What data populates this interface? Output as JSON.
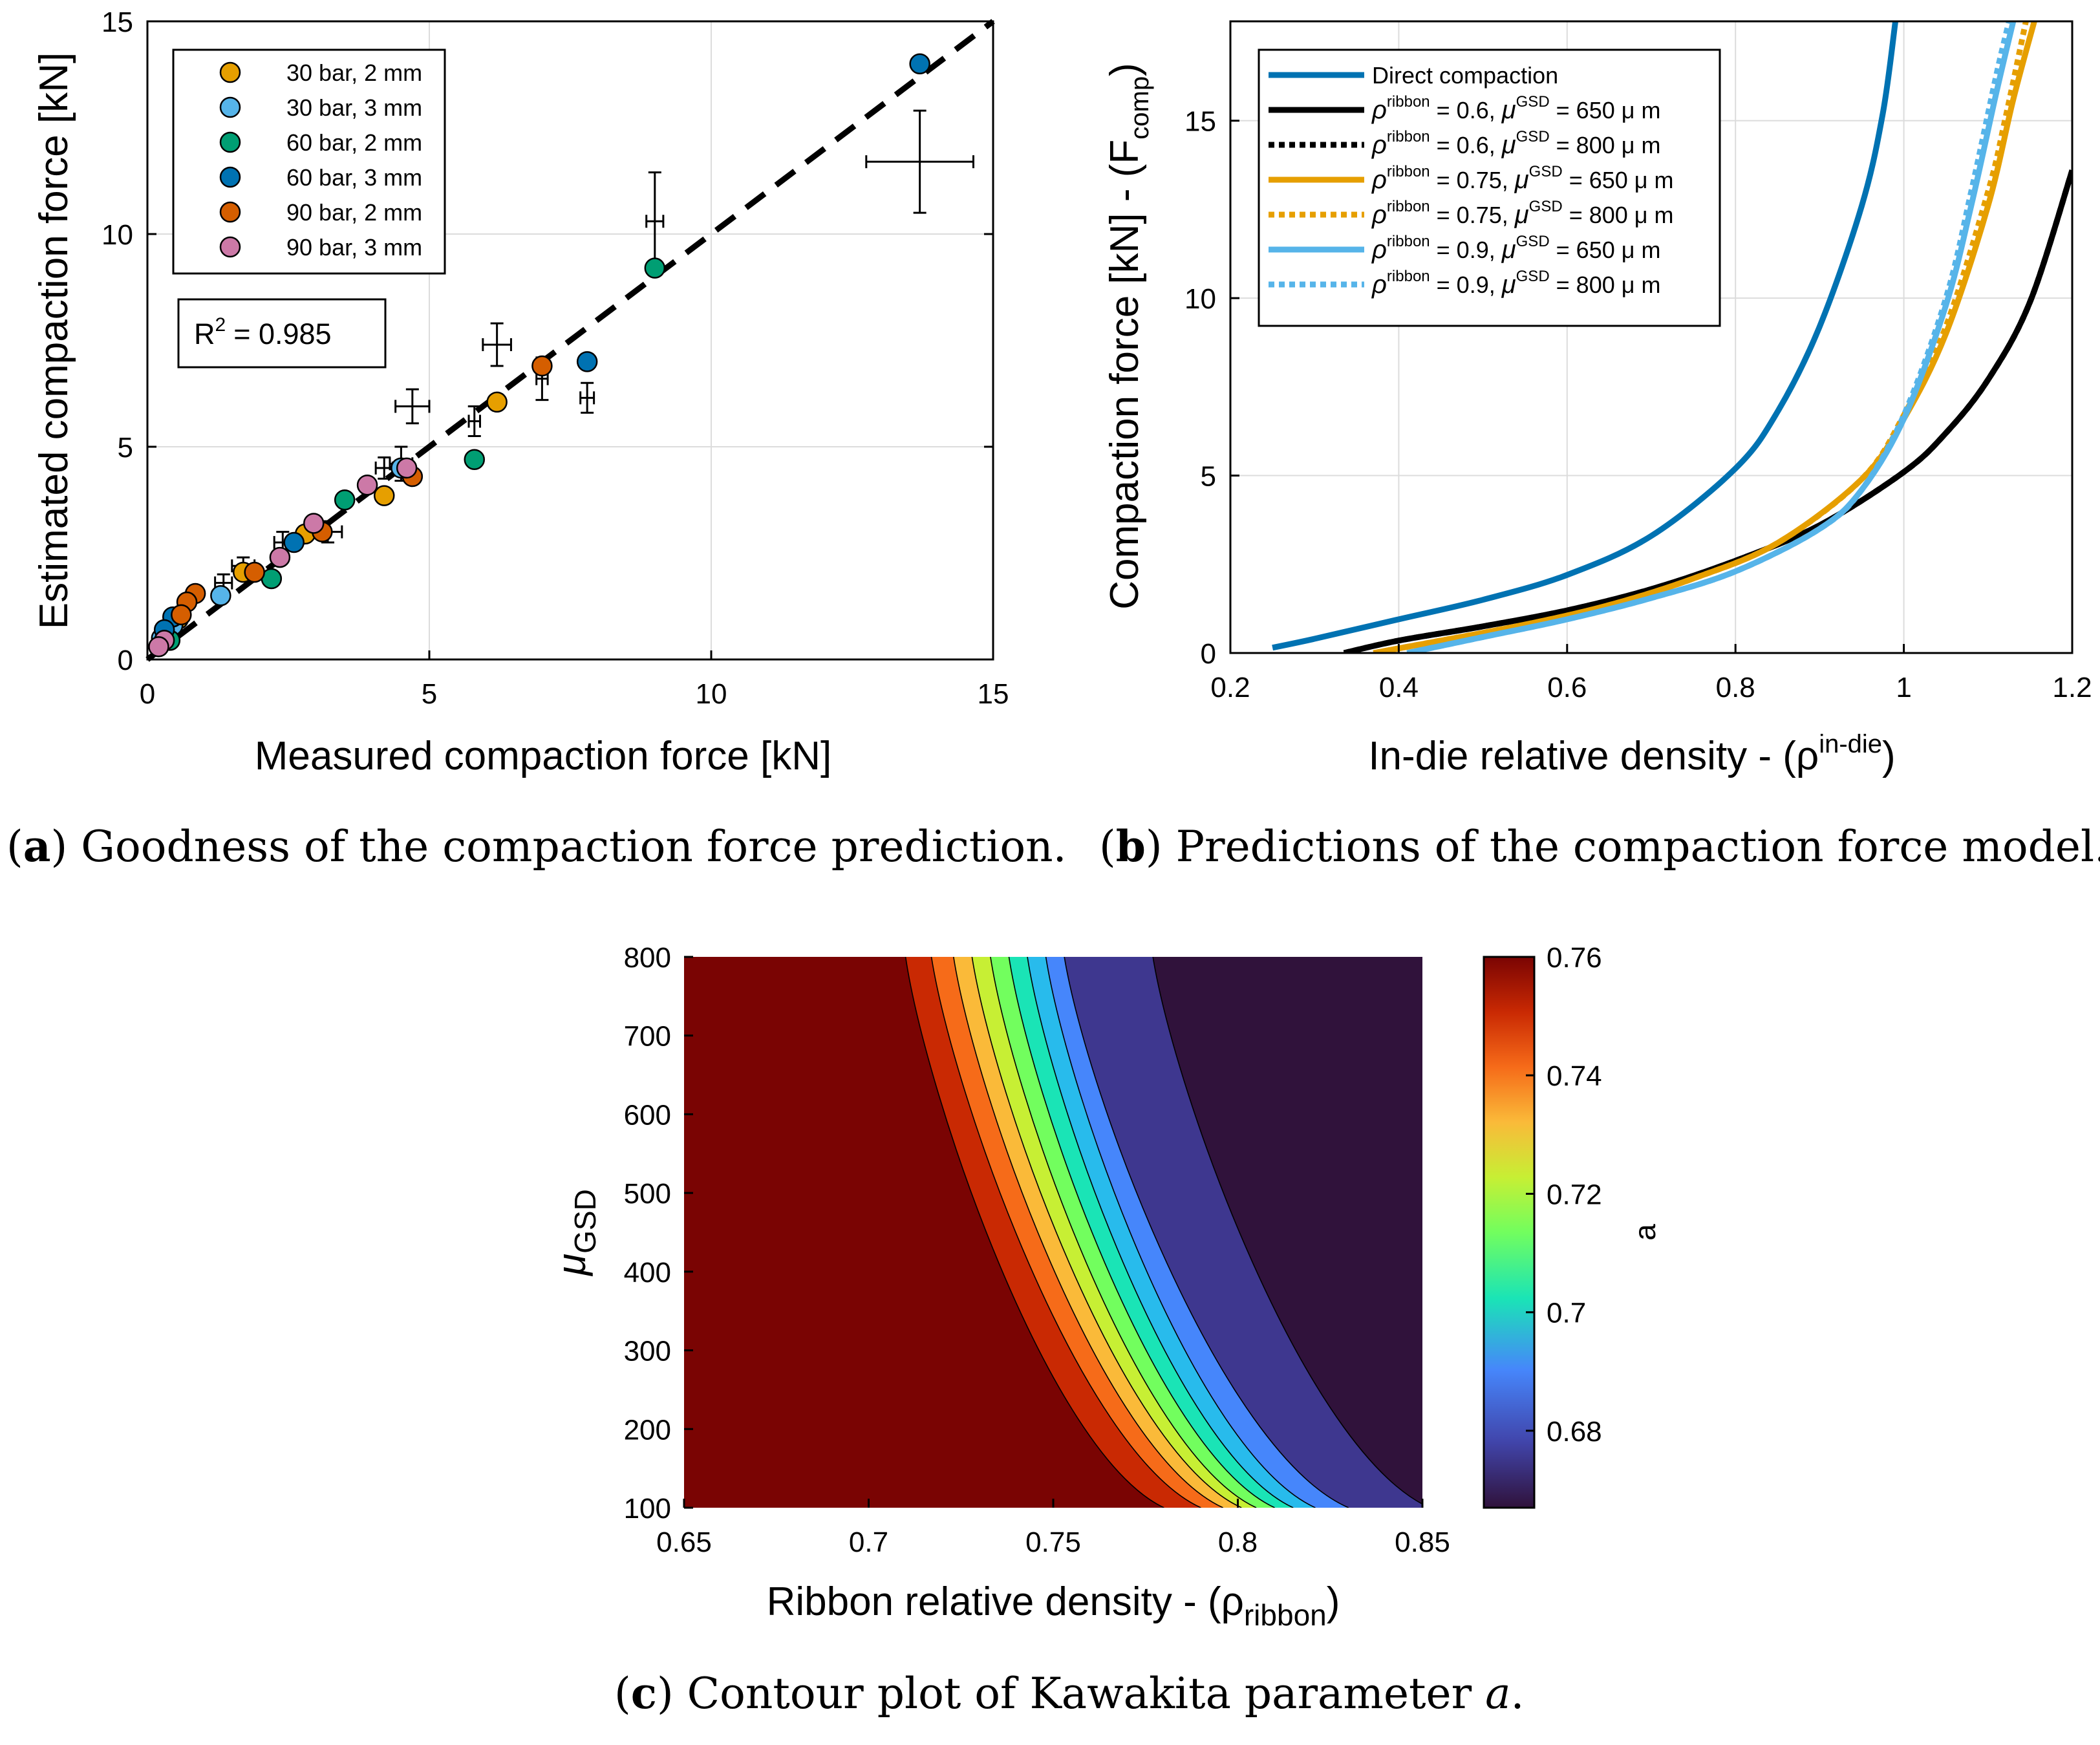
{
  "captions": {
    "a_label": "a",
    "a_text": "Goodness of the compaction force prediction.",
    "b_label": "b",
    "b_text": "Predictions of the compaction force model.",
    "c_label": "c",
    "c_text": "Contour plot of Kawakita parameter",
    "c_param": "a",
    "c_end": "."
  },
  "chart_data": [
    {
      "id": "a",
      "type": "scatter",
      "xlabel": "Measured compaction force [kN]",
      "ylabel": "Estimated compaction force [kN]",
      "xlim": [
        0,
        15
      ],
      "ylim": [
        0,
        15
      ],
      "xticks": [
        0,
        5,
        10,
        15
      ],
      "yticks": [
        0,
        5,
        10,
        15
      ],
      "grid": true,
      "legend_position": "top-left",
      "r2_text": "R² = 0.985",
      "r2_label": "R",
      "r2_sup": "2",
      "r2_value": "= 0.985",
      "identity_line": {
        "style": "dashed",
        "x": [
          0,
          15
        ],
        "y": [
          0,
          15
        ]
      },
      "series": [
        {
          "name": "30 bar, 2 mm",
          "color": "#E69F00",
          "points": [
            [
              1.7,
              2.05
            ],
            [
              2.8,
              2.95
            ],
            [
              4.2,
              3.85
            ],
            [
              6.2,
              6.05
            ],
            [
              0.55,
              0.95
            ],
            [
              0.35,
              0.6
            ]
          ]
        },
        {
          "name": "30 bar, 3 mm",
          "color": "#56B4E9",
          "points": [
            [
              1.3,
              1.5
            ],
            [
              4.5,
              4.5
            ],
            [
              0.45,
              0.8
            ],
            [
              0.25,
              0.5
            ]
          ]
        },
        {
          "name": "60 bar, 2 mm",
          "color": "#009E73",
          "points": [
            [
              9.0,
              9.2
            ],
            [
              5.8,
              4.7
            ],
            [
              3.5,
              3.75
            ],
            [
              2.2,
              1.9
            ],
            [
              0.4,
              0.45
            ]
          ]
        },
        {
          "name": "60 bar, 3 mm",
          "color": "#0072B2",
          "points": [
            [
              13.7,
              14.0
            ],
            [
              7.8,
              7.0
            ],
            [
              2.6,
              2.75
            ],
            [
              0.45,
              1.0
            ],
            [
              0.3,
              0.7
            ]
          ]
        },
        {
          "name": "90 bar, 2 mm",
          "color": "#D55E00",
          "points": [
            [
              7.0,
              6.9
            ],
            [
              3.1,
              3.0
            ],
            [
              1.9,
              2.05
            ],
            [
              0.85,
              1.55
            ],
            [
              0.7,
              1.35
            ],
            [
              0.6,
              1.05
            ],
            [
              4.7,
              4.3
            ]
          ]
        },
        {
          "name": "90 bar, 3 mm",
          "color": "#CC79A7",
          "points": [
            [
              3.9,
              4.1
            ],
            [
              2.95,
              3.2
            ],
            [
              2.35,
              2.4
            ],
            [
              4.6,
              4.5
            ],
            [
              0.3,
              0.45
            ],
            [
              0.2,
              0.3
            ]
          ]
        }
      ],
      "error_bars": [
        {
          "x": 13.7,
          "y": 11.7,
          "xerr": 0.95,
          "yerr": 1.2
        },
        {
          "x": 9.0,
          "y": 10.3,
          "xerr": 0.15,
          "yerr": 1.15
        },
        {
          "x": 6.2,
          "y": 7.4,
          "xerr": 0.25,
          "yerr": 0.5
        },
        {
          "x": 7.0,
          "y": 6.6,
          "xerr": 0.1,
          "yerr": 0.5
        },
        {
          "x": 7.8,
          "y": 6.15,
          "xerr": 0.12,
          "yerr": 0.35
        },
        {
          "x": 4.7,
          "y": 5.95,
          "xerr": 0.3,
          "yerr": 0.4
        },
        {
          "x": 5.8,
          "y": 5.6,
          "xerr": 0.1,
          "yerr": 0.35
        },
        {
          "x": 4.5,
          "y": 4.6,
          "xerr": 0.2,
          "yerr": 0.4
        },
        {
          "x": 4.2,
          "y": 4.5,
          "xerr": 0.15,
          "yerr": 0.25
        },
        {
          "x": 3.2,
          "y": 3.0,
          "xerr": 0.25,
          "yerr": 0.25
        },
        {
          "x": 2.4,
          "y": 2.75,
          "xerr": 0.15,
          "yerr": 0.25
        },
        {
          "x": 1.7,
          "y": 2.2,
          "xerr": 0.2,
          "yerr": 0.2
        },
        {
          "x": 1.35,
          "y": 1.8,
          "xerr": 0.15,
          "yerr": 0.2
        }
      ]
    },
    {
      "id": "b",
      "type": "line",
      "xlabel": "In-die relative density - (ρ",
      "xlabel_sup": "in-die",
      "xlabel_end": ")",
      "ylabel": "Compaction force [kN] - (F",
      "ylabel_sub": "comp",
      "ylabel_end": ")",
      "xlim": [
        0.2,
        1.2
      ],
      "ylim": [
        0,
        17.8
      ],
      "xticks": [
        0.2,
        0.4,
        0.6,
        0.8,
        1.0,
        1.2
      ],
      "xtick_labels": [
        "0.2",
        "0.4",
        "0.6",
        "0.8",
        "1",
        "1.2"
      ],
      "yticks": [
        0,
        5,
        10,
        15
      ],
      "grid": true,
      "legend_position": "top-left",
      "series": [
        {
          "name": "Direct compaction",
          "legend": {
            "plain": "Direct compaction"
          },
          "color": "#0072B2",
          "style": "solid",
          "x": [
            0.25,
            0.3,
            0.4,
            0.5,
            0.6,
            0.7,
            0.8,
            0.85,
            0.9,
            0.95,
            0.975,
            0.99
          ],
          "y": [
            0.15,
            0.4,
            0.95,
            1.5,
            2.2,
            3.3,
            5.2,
            6.8,
            9.2,
            12.6,
            15.2,
            17.8
          ]
        },
        {
          "name": "ρ^ribbon = 0.6, μ^GSD = 650 μ m",
          "legend": {
            "rho_sup": "ribbon",
            "mid": " = 0.6, ",
            "mu_sup": "GSD",
            "end": " = 650 μ m"
          },
          "color": "#000000",
          "style": "solid",
          "x": [
            0.335,
            0.4,
            0.5,
            0.6,
            0.7,
            0.8,
            0.9,
            1.0,
            1.05,
            1.1,
            1.15,
            1.2
          ],
          "y": [
            0.0,
            0.35,
            0.75,
            1.2,
            1.8,
            2.6,
            3.6,
            5.1,
            6.2,
            7.7,
            9.9,
            13.6
          ]
        },
        {
          "name": "ρ^ribbon = 0.6, μ^GSD = 800 μ m",
          "legend": {
            "rho_sup": "ribbon",
            "mid": " = 0.6, ",
            "mu_sup": "GSD",
            "end": " = 800 μ m"
          },
          "color": "#000000",
          "style": "dotted",
          "x": [
            0.335,
            0.4,
            0.5,
            0.6,
            0.7,
            0.8,
            0.9,
            1.0,
            1.05,
            1.1,
            1.15,
            1.2
          ],
          "y": [
            0.0,
            0.35,
            0.75,
            1.2,
            1.8,
            2.6,
            3.6,
            5.1,
            6.2,
            7.7,
            9.9,
            13.6
          ]
        },
        {
          "name": "ρ^ribbon = 0.75, μ^GSD = 650 μ m",
          "legend": {
            "rho_sup": "ribbon",
            "mid": " = 0.75, ",
            "mu_sup": "GSD",
            "end": " = 650 μ m"
          },
          "color": "#E69F00",
          "style": "solid",
          "x": [
            0.37,
            0.45,
            0.55,
            0.65,
            0.75,
            0.85,
            0.95,
            1.0,
            1.05,
            1.1,
            1.13,
            1.155
          ],
          "y": [
            0.0,
            0.35,
            0.8,
            1.35,
            2.1,
            3.1,
            4.9,
            6.6,
            9.0,
            12.6,
            15.6,
            17.8
          ]
        },
        {
          "name": "ρ^ribbon = 0.75, μ^GSD = 800 μ m",
          "legend": {
            "rho_sup": "ribbon",
            "mid": " = 0.75, ",
            "mu_sup": "GSD",
            "end": " = 800 μ m"
          },
          "color": "#E69F00",
          "style": "dotted",
          "x": [
            0.37,
            0.45,
            0.55,
            0.65,
            0.75,
            0.85,
            0.95,
            1.0,
            1.05,
            1.1,
            1.12,
            1.145
          ],
          "y": [
            0.0,
            0.35,
            0.8,
            1.35,
            2.1,
            3.1,
            4.9,
            6.7,
            9.2,
            13.0,
            15.0,
            17.8
          ]
        },
        {
          "name": "ρ^ribbon = 0.9, μ^GSD = 650 μ m",
          "legend": {
            "rho_sup": "ribbon",
            "mid": " = 0.9, ",
            "mu_sup": "GSD",
            "end": " = 650 μ m"
          },
          "color": "#56B4E9",
          "style": "solid",
          "x": [
            0.41,
            0.5,
            0.6,
            0.7,
            0.8,
            0.9,
            0.95,
            1.0,
            1.05,
            1.08,
            1.11,
            1.13
          ],
          "y": [
            0.0,
            0.45,
            0.95,
            1.55,
            2.3,
            3.5,
            4.6,
            6.6,
            9.8,
            12.6,
            15.8,
            17.8
          ]
        },
        {
          "name": "ρ^ribbon = 0.9, μ^GSD = 800 μ m",
          "legend": {
            "rho_sup": "ribbon",
            "mid": " = 0.9, ",
            "mu_sup": "GSD",
            "end": " = 800 μ m"
          },
          "color": "#56B4E9",
          "style": "dotted",
          "x": [
            0.41,
            0.5,
            0.6,
            0.7,
            0.8,
            0.9,
            0.95,
            1.0,
            1.05,
            1.08,
            1.11,
            1.125
          ],
          "y": [
            0.0,
            0.45,
            0.95,
            1.55,
            2.3,
            3.5,
            4.6,
            6.7,
            10.0,
            13.0,
            16.3,
            17.8
          ]
        }
      ]
    },
    {
      "id": "c",
      "type": "heatmap",
      "subtype": "filled contour",
      "xlabel": "Ribbon relative density - (ρ",
      "xlabel_sub": "ribbon",
      "xlabel_end": ")",
      "ylabel": "μ",
      "ylabel_sub": "GSD",
      "colorbar_label": "a",
      "xlim": [
        0.65,
        0.85
      ],
      "ylim": [
        100,
        800
      ],
      "xticks": [
        0.65,
        0.7,
        0.75,
        0.8,
        0.85
      ],
      "yticks": [
        100,
        200,
        300,
        400,
        500,
        600,
        700,
        800
      ],
      "colorbar_range": [
        0.667,
        0.76
      ],
      "colorbar_ticks": [
        0.68,
        0.7,
        0.72,
        0.74,
        0.76
      ],
      "contour_boundaries": [
        {
          "x_at_800": 0.71,
          "x_at_100": 0.78
        },
        {
          "x_at_800": 0.717,
          "x_at_100": 0.79
        },
        {
          "x_at_800": 0.723,
          "x_at_100": 0.796
        },
        {
          "x_at_800": 0.728,
          "x_at_100": 0.801
        },
        {
          "x_at_800": 0.733,
          "x_at_100": 0.805
        },
        {
          "x_at_800": 0.738,
          "x_at_100": 0.81
        },
        {
          "x_at_800": 0.743,
          "x_at_100": 0.815
        },
        {
          "x_at_800": 0.748,
          "x_at_100": 0.821
        },
        {
          "x_at_800": 0.753,
          "x_at_100": 0.83
        },
        {
          "x_at_800": 0.777,
          "x_at_100": 0.852
        }
      ],
      "level_colors": [
        "#7A0403",
        "#C92903",
        "#F66B19",
        "#FABA39",
        "#C7EF34",
        "#72FE5E",
        "#1AE4B6",
        "#28BBEC",
        "#4686FB",
        "#3E378F",
        "#30123B"
      ]
    }
  ]
}
